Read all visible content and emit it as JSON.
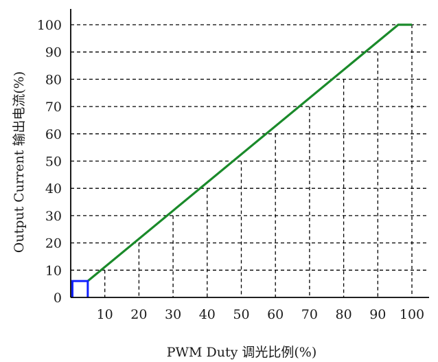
{
  "chart_data": {
    "type": "line",
    "xlabel": "PWM Duty 调光比例(%)",
    "ylabel": "Output Current 输出电流(%)",
    "xlim": [
      0,
      100
    ],
    "ylim": [
      0,
      100
    ],
    "x_ticks": [
      10,
      20,
      30,
      40,
      50,
      60,
      70,
      80,
      90,
      100
    ],
    "y_ticks": [
      0,
      10,
      20,
      30,
      40,
      50,
      60,
      70,
      80,
      90,
      100
    ],
    "grid": "dashed",
    "series": [
      {
        "color": "#1a8a2a",
        "points": [
          [
            5,
            6
          ],
          [
            96,
            100
          ],
          [
            100,
            100
          ]
        ],
        "drop_points": [
          [
            10,
            10
          ],
          [
            20,
            20
          ],
          [
            30,
            30
          ],
          [
            40,
            40
          ],
          [
            50,
            50
          ],
          [
            60,
            60
          ],
          [
            70,
            70
          ],
          [
            80,
            80
          ],
          [
            90,
            90
          ],
          [
            100,
            100
          ]
        ]
      }
    ],
    "marker": {
      "shape": "square-pulse",
      "color": "#1020ff",
      "x_range": [
        0.5,
        5
      ],
      "y_top": 6
    }
  }
}
